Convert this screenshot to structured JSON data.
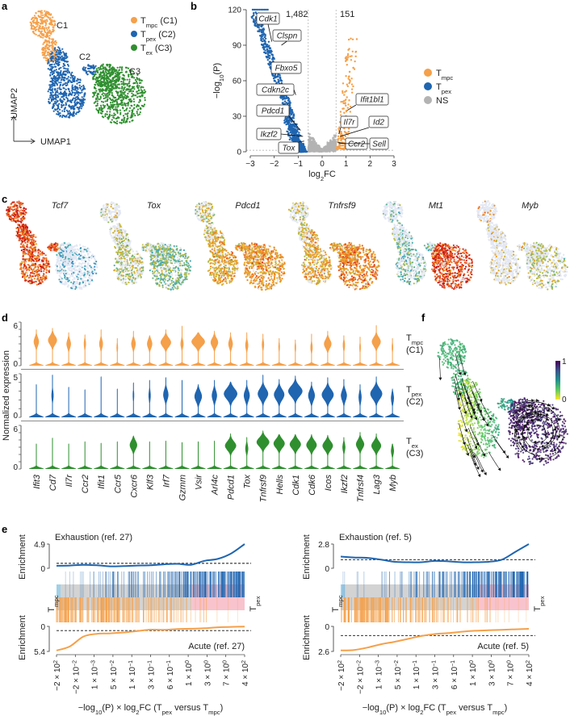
{
  "panel_labels": {
    "a": "a",
    "b": "b",
    "c": "c",
    "d": "d",
    "e": "e",
    "f": "f"
  },
  "colors": {
    "tmpc": "#f5a04a",
    "tpex": "#1f65b0",
    "tex": "#2f8f2f",
    "ns": "#b3b3b3",
    "pink": "#f8c3cd",
    "band": "#d3d3d3",
    "light_blue": "#9fd0e8"
  },
  "chart_data": [
    {
      "panel": "a",
      "type": "scatter",
      "xlabel": "UMAP1",
      "ylabel": "UMAP2",
      "cluster_labels": [
        "C1",
        "C2",
        "C3"
      ],
      "legend": [
        {
          "base": "T",
          "sub": "mpc",
          "suffix": " (C1)"
        },
        {
          "base": "T",
          "sub": "pex",
          "suffix": " (C2)"
        },
        {
          "base": "T",
          "sub": "ex",
          "suffix": " (C3)"
        }
      ]
    },
    {
      "panel": "b",
      "type": "scatter",
      "xlabel": {
        "main": "log",
        "sub": "2",
        "end": "FC"
      },
      "ylabel": {
        "main": "−log",
        "sub": "10",
        "end": "(P)"
      },
      "xlim": [
        -3,
        3
      ],
      "ylim": [
        0,
        120
      ],
      "xticks": [
        -3,
        -2,
        -1,
        0,
        1,
        2,
        3
      ],
      "yticks": [
        0,
        30,
        60,
        90,
        120
      ],
      "fc_threshold": 0.58,
      "p_threshold": 1.3,
      "counts": {
        "down": "1,482",
        "up": "151"
      },
      "legend": [
        {
          "base": "T",
          "sub": "mpc"
        },
        {
          "base": "T",
          "sub": "pex"
        },
        {
          "base": "NS",
          "sub": ""
        }
      ],
      "labeled_genes": [
        {
          "gene": "Cdk1",
          "log2fc": -2.1,
          "neglog10p": 93
        },
        {
          "gene": "Clspn",
          "log2fc": -1.7,
          "neglog10p": 90
        },
        {
          "gene": "Fbxo5",
          "log2fc": -1.5,
          "neglog10p": 74
        },
        {
          "gene": "Cdkn2c",
          "log2fc": -1.1,
          "neglog10p": 48
        },
        {
          "gene": "Pdcd1",
          "log2fc": -0.9,
          "neglog10p": 18
        },
        {
          "gene": "Ikzf2",
          "log2fc": -0.8,
          "neglog10p": 13
        },
        {
          "gene": "Tox",
          "log2fc": -0.75,
          "neglog10p": 9
        },
        {
          "gene": "Ifit1bl1",
          "log2fc": 1.05,
          "neglog10p": 35
        },
        {
          "gene": "Il7r",
          "log2fc": 0.7,
          "neglog10p": 15
        },
        {
          "gene": "Id2",
          "log2fc": 0.75,
          "neglog10p": 13
        },
        {
          "gene": "Ccr2",
          "log2fc": 0.65,
          "neglog10p": 8
        },
        {
          "gene": "Sell",
          "log2fc": 0.7,
          "neglog10p": 7
        }
      ]
    },
    {
      "panel": "c",
      "type": "scatter",
      "genes": [
        {
          "name": "Tcf7",
          "cluster_expression": [
            0.9,
            0.85,
            0.15
          ],
          "fraction_expressing": [
            0.95,
            0.9,
            0.3
          ]
        },
        {
          "name": "Tox",
          "cluster_expression": [
            0.55,
            0.5,
            0.4
          ],
          "fraction_expressing": [
            0.35,
            0.55,
            0.75
          ]
        },
        {
          "name": "Pdcd1",
          "cluster_expression": [
            0.55,
            0.65,
            0.7
          ],
          "fraction_expressing": [
            0.5,
            0.85,
            0.9
          ]
        },
        {
          "name": "Tnfrsf9",
          "cluster_expression": [
            0.55,
            0.65,
            0.75
          ],
          "fraction_expressing": [
            0.45,
            0.8,
            0.95
          ]
        },
        {
          "name": "Mt1",
          "cluster_expression": [
            0.35,
            0.35,
            0.9
          ],
          "fraction_expressing": [
            0.2,
            0.5,
            0.9
          ]
        },
        {
          "name": "Myb",
          "cluster_expression": [
            0.7,
            0.6,
            0.5
          ],
          "fraction_expressing": [
            0.2,
            0.2,
            0.45
          ]
        }
      ]
    },
    {
      "panel": "d",
      "type": "violin",
      "ylabel": "Normalized expression",
      "genes": [
        "Ifit3",
        "Cd7",
        "Il7r",
        "Ccr2",
        "Ifit1",
        "Ccr5",
        "Cxcr6",
        "Klf3",
        "Irf7",
        "Gzmm",
        "Vsir",
        "Arl4c",
        "Pdcd1",
        "Tox",
        "Tnfrsf9",
        "Hells",
        "Cdk1",
        "Cdk6",
        "Icos",
        "Ikzf2",
        "Tnfrsf4",
        "Lag3",
        "Myb"
      ],
      "groups": [
        {
          "base": "T",
          "sub": "mpc",
          "name": "(C1)",
          "ymax": 6,
          "yticks": [
            "0",
            "6"
          ],
          "max": [
            5,
            5.2,
            4.6,
            4.3,
            5,
            3.8,
            4.8,
            4.2,
            5,
            5.5,
            4.6,
            4.8,
            4.6,
            4.6,
            4.4,
            3.8,
            3.6,
            4.4,
            4.8,
            4.2,
            4,
            5.6,
            3.8
          ],
          "mode": [
            3.3,
            3.5,
            3,
            3,
            3,
            2.5,
            3,
            3,
            3.2,
            3,
            3.3,
            3.2,
            3,
            2.8,
            2.9,
            2.6,
            2.5,
            2.5,
            3,
            2.8,
            2.5,
            3.3,
            2.5
          ],
          "density": [
            0.35,
            0.6,
            0.3,
            0.15,
            0.25,
            0.1,
            0.3,
            0.35,
            0.7,
            0.2,
            0.9,
            0.5,
            0.3,
            0.2,
            0.15,
            0.1,
            0.1,
            0.15,
            0.5,
            0.15,
            0.1,
            0.6,
            0.1
          ]
        },
        {
          "base": "T",
          "sub": "pex",
          "name": "(C2)",
          "ymax": 5,
          "yticks": [
            "0",
            "5"
          ],
          "max": [
            3.8,
            4.9,
            3.5,
            3.2,
            4.7,
            3.3,
            4,
            4.3,
            4.6,
            4.3,
            3.8,
            4.3,
            4.1,
            4.3,
            4.9,
            4.4,
            4.8,
            4.1,
            4.6,
            4.4,
            3.8,
            4.7,
            3.3
          ],
          "mode": [
            2.2,
            2.5,
            2,
            2,
            2.5,
            2,
            2.5,
            2.5,
            2.6,
            2.5,
            2.4,
            2.5,
            2.7,
            2.5,
            2.7,
            2.6,
            3,
            2.5,
            2.6,
            2.5,
            2.3,
            2.7,
            2.2
          ],
          "density": [
            0.05,
            0.15,
            0.05,
            0.05,
            0.05,
            0.05,
            0.1,
            0.15,
            0.35,
            0.05,
            0.5,
            0.35,
            0.9,
            0.4,
            0.7,
            0.7,
            0.95,
            0.45,
            0.8,
            0.4,
            0.2,
            0.8,
            0.2
          ]
        },
        {
          "base": "T",
          "sub": "ex",
          "name": "(C3)",
          "ymax": 6,
          "yticks": [
            "0",
            "6"
          ],
          "max": [
            3.5,
            4.3,
            3.5,
            3.8,
            3.6,
            3.8,
            4.6,
            3.8,
            3.9,
            3.7,
            3.8,
            3.9,
            4.9,
            4.4,
            5.3,
            4.8,
            4.8,
            4.8,
            4.7,
            4.4,
            5.1,
            4.9,
            3.5
          ],
          "mode": [
            2.5,
            2.5,
            2.5,
            2.5,
            2.5,
            2.5,
            3.3,
            2.5,
            2.5,
            2.5,
            2.5,
            2.5,
            3.2,
            2.8,
            3.7,
            3.5,
            3.4,
            3.3,
            3.2,
            3,
            3.4,
            3.2,
            2.5
          ],
          "density": [
            0.03,
            0.05,
            0.03,
            0.03,
            0.03,
            0.03,
            0.5,
            0.03,
            0.05,
            0.03,
            0.05,
            0.05,
            0.75,
            0.2,
            0.85,
            0.75,
            0.75,
            0.7,
            0.7,
            0.2,
            0.55,
            0.65,
            0.2
          ]
        }
      ]
    },
    {
      "panel": "e",
      "type": "line",
      "ylabel": "Enrichment",
      "left_label": {
        "base": "T",
        "sub": "mpc"
      },
      "right_label": {
        "base": "T",
        "sub": "pex"
      },
      "xticks": [
        {
          "m": "−2 × 10",
          "e": "2"
        },
        {
          "m": "−2 × 10",
          "e": "−2"
        },
        {
          "m": "1 × 10",
          "e": "−3"
        },
        {
          "m": "5 × 10",
          "e": "−2"
        },
        {
          "m": "1 × 10",
          "e": "−1"
        },
        {
          "m": "3 × 10",
          "e": "−1"
        },
        {
          "m": "6 × 10",
          "e": "−1"
        },
        {
          "m": "1 × 10",
          "e": "0"
        },
        {
          "m": "3 × 10",
          "e": "0"
        },
        {
          "m": "7 × 10",
          "e": "0"
        },
        {
          "m": "4 × 10",
          "e": "2"
        }
      ],
      "xlabel": [
        {
          "t": "−log"
        },
        {
          "t": "10",
          "sub": true
        },
        {
          "t": "(P) × log"
        },
        {
          "t": "2",
          "sub": true
        },
        {
          "t": "FC (T"
        },
        {
          "t": "pex",
          "sub": true
        },
        {
          "t": " versus T"
        },
        {
          "t": "mpc",
          "sub": true
        },
        {
          "t": ")"
        }
      ],
      "plots": [
        {
          "top_title": "Exhaustion (ref. 27)",
          "bottom_title": "Acute (ref. 27)",
          "top_ymax": 4.9,
          "top_yticks": [
            "0",
            "4.9"
          ],
          "top_threshold": 1.0,
          "bottom_ymax": 5.4,
          "bottom_yticks": [
            "0",
            "5.4"
          ],
          "bottom_threshold": 0.9,
          "top_curve": [
            0.5,
            0.55,
            0.7,
            0.6,
            0.4,
            0.45,
            0.55,
            0.6,
            0.8,
            0.9,
            0.7,
            1.5,
            1.9,
            3.0,
            4.9
          ],
          "bottom_curve": [
            5.2,
            4.3,
            2.2,
            1.6,
            1.5,
            1.3,
            1.0,
            0.7,
            0.75,
            0.55,
            0.5,
            0.4,
            0.2,
            0.1,
            0.05
          ]
        },
        {
          "top_title": "Exhaustion (ref. 5)",
          "bottom_title": "Acute (ref. 5)",
          "top_ymax": 2.8,
          "top_yticks": [
            "0",
            "2.8"
          ],
          "top_threshold": 1.0,
          "bottom_ymax": 2.6,
          "bottom_yticks": [
            "0",
            "2.6"
          ],
          "bottom_threshold": 0.95,
          "top_curve": [
            1.35,
            1.25,
            1.2,
            1.0,
            0.75,
            0.7,
            0.7,
            0.85,
            0.8,
            0.7,
            0.7,
            0.75,
            1.0,
            1.9,
            2.8
          ],
          "bottom_curve": [
            2.5,
            2.45,
            2.2,
            1.85,
            1.6,
            1.3,
            1.0,
            0.8,
            0.7,
            0.55,
            0.45,
            0.4,
            0.35,
            0.3,
            0.25
          ]
        }
      ]
    },
    {
      "panel": "f",
      "type": "scatter",
      "colorbar": {
        "min": 0,
        "max": 1,
        "min_label": "0",
        "max_label": "1"
      }
    }
  ]
}
